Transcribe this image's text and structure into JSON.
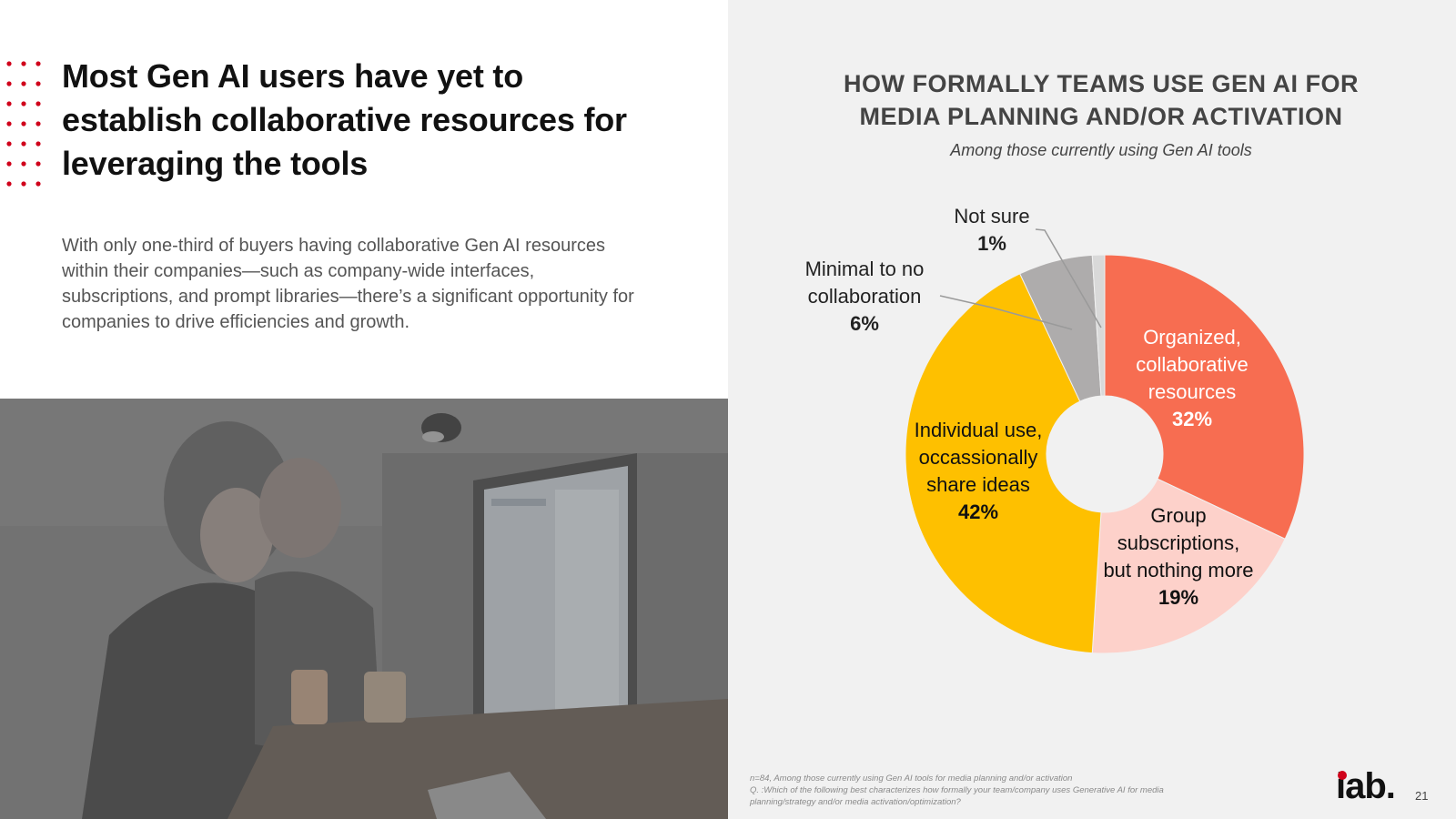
{
  "slide": {
    "title": "Most Gen AI users have yet to establish collaborative resources for leveraging the tools",
    "body": "With only one-third of buyers having collaborative Gen AI resources within their companies—such as company-wide interfaces, subscriptions, and prompt libraries—there’s a significant opportunity for companies to drive efficiencies and growth.",
    "page_number": "21",
    "logo_text": "iab."
  },
  "chart_data": {
    "type": "pie",
    "title": "HOW FORMALLY TEAMS USE GEN AI FOR MEDIA PLANNING AND/OR ACTIVATION",
    "subtitle": "Among those currently using Gen AI tools",
    "donut": true,
    "slices": [
      {
        "label": "Organized, collaborative resources",
        "value": 32,
        "display": "32%",
        "color": "#f76d51"
      },
      {
        "label": "Group subscriptions, but nothing more",
        "value": 19,
        "display": "19%",
        "color": "#fdd1ca"
      },
      {
        "label": "Individual use, occassionally share ideas",
        "value": 42,
        "display": "42%",
        "color": "#fec000"
      },
      {
        "label": "Minimal to no collaboration",
        "value": 6,
        "display": "6%",
        "color": "#aeacac"
      },
      {
        "label": "Not sure",
        "value": 1,
        "display": "1%",
        "color": "#d9d9d9"
      }
    ],
    "label_lines": {
      "organized": [
        "Organized,",
        "collaborative",
        "resources"
      ],
      "group": [
        "Group",
        "subscriptions,",
        "but nothing more"
      ],
      "individual": [
        "Individual use,",
        "occassionally",
        "share ideas"
      ],
      "minimal": [
        "Minimal to no",
        "collaboration"
      ],
      "notsure": [
        "Not sure"
      ]
    }
  },
  "footnote": {
    "line1": "n=84, Among those currently using Gen AI tools for media planning and/or activation",
    "line2": "Q. :Which of the following best characterizes how formally your team/company uses Generative AI for media",
    "line3": "planning/strategy and/or media activation/optimization?"
  },
  "colors": {
    "accent_red": "#d0021b",
    "background_right": "#f1f1f1"
  }
}
